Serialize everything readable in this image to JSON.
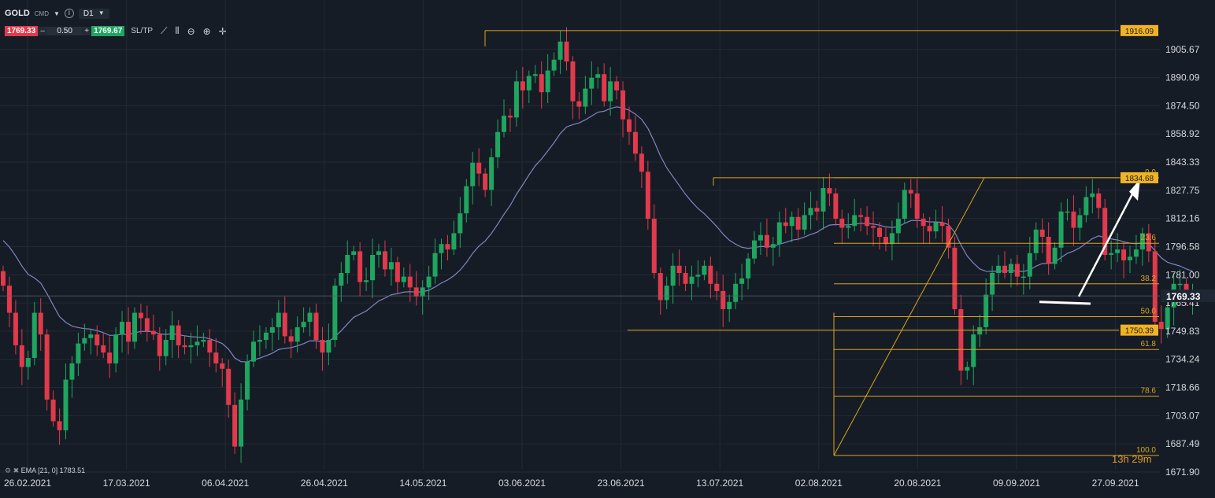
{
  "toolbar": {
    "symbol": "GOLD",
    "chart_type": "CMD",
    "timeframe": "D1",
    "bid": "1769.33",
    "minus": "–",
    "lot": "0.50",
    "plus": "+",
    "ask": "1769.67",
    "sltp": "SL/TP",
    "icons": [
      "line-chart-icon",
      "candles-icon",
      "zoom-out-icon",
      "zoom-in-icon",
      "crosshair-icon"
    ]
  },
  "ema_legend": "EMA [21, 0]  1783.51",
  "countdown": "13h 29m",
  "colors": {
    "background": "#161c25",
    "bull": "#1fa560",
    "bear": "#e03a4c",
    "ema": "#7f86c4",
    "fib": "#d9a421",
    "fib_label_bg": "#f0b323",
    "current_price_tag": "#1e2733"
  },
  "chart_data": {
    "type": "candlestick",
    "symbol": "GOLD",
    "timeframe": "D1",
    "y_ticks": [
      1905.67,
      1890.09,
      1874.5,
      1858.92,
      1843.33,
      1827.75,
      1812.16,
      1796.58,
      1781.0,
      1765.41,
      1749.83,
      1734.24,
      1718.66,
      1703.07,
      1687.49,
      1671.9
    ],
    "ylim": [
      1671.9,
      1921.25
    ],
    "x_ticks": [
      "26.02.2021",
      "17.03.2021",
      "06.04.2021",
      "26.04.2021",
      "14.05.2021",
      "03.06.2021",
      "23.06.2021",
      "13.07.2021",
      "02.08.2021",
      "20.08.2021",
      "09.09.2021",
      "27.09.2021"
    ],
    "closes": [
      1775,
      1760,
      1742,
      1730,
      1735,
      1760,
      1748,
      1712,
      1700,
      1695,
      1723,
      1732,
      1743,
      1746,
      1748,
      1742,
      1738,
      1732,
      1748,
      1755,
      1744,
      1760,
      1757,
      1750,
      1748,
      1736,
      1745,
      1753,
      1742,
      1741,
      1742,
      1744,
      1745,
      1738,
      1732,
      1729,
      1709,
      1686,
      1712,
      1733,
      1744,
      1745,
      1749,
      1752,
      1760,
      1747,
      1744,
      1752,
      1755,
      1760,
      1745,
      1738,
      1745,
      1775,
      1782,
      1792,
      1794,
      1777,
      1778,
      1792,
      1794,
      1784,
      1788,
      1777,
      1780,
      1774,
      1769,
      1774,
      1780,
      1793,
      1798,
      1795,
      1804,
      1815,
      1830,
      1843,
      1837,
      1828,
      1846,
      1860,
      1869,
      1868,
      1888,
      1883,
      1891,
      1892,
      1882,
      1894,
      1900,
      1910,
      1899,
      1877,
      1874,
      1884,
      1890,
      1892,
      1877,
      1888,
      1883,
      1867,
      1860,
      1848,
      1838,
      1812,
      1782,
      1767,
      1775,
      1786,
      1782,
      1776,
      1780,
      1781,
      1786,
      1776,
      1772,
      1762,
      1766,
      1776,
      1779,
      1790,
      1800,
      1803,
      1796,
      1798,
      1810,
      1808,
      1813,
      1806,
      1814,
      1818,
      1816,
      1829,
      1826,
      1812,
      1807,
      1808,
      1814,
      1813,
      1808,
      1807,
      1802,
      1798,
      1804,
      1812,
      1828,
      1826,
      1812,
      1808,
      1805,
      1810,
      1808,
      1796,
      1762,
      1728,
      1730,
      1748,
      1752,
      1770,
      1782,
      1786,
      1782,
      1787,
      1780,
      1780,
      1793,
      1806,
      1802,
      1787,
      1796,
      1816,
      1816,
      1807,
      1814,
      1824,
      1826,
      1818,
      1792,
      1793,
      1795,
      1789,
      1791,
      1795,
      1804,
      1794,
      1755,
      1751,
      1763,
      1776,
      1776,
      1768,
      1771
    ]
  },
  "fibonacci": {
    "levels": [
      {
        "ratio": "0.0",
        "price": 1834.68
      },
      {
        "ratio": "23.6",
        "price": 1798.43
      },
      {
        "ratio": "38.2",
        "price": 1776.01
      },
      {
        "ratio": "50.0",
        "price": 1757.85
      },
      {
        "ratio": "61.8",
        "price": 1739.7
      },
      {
        "ratio": "78.6",
        "price": 1713.9
      },
      {
        "ratio": "100.0",
        "price": 1681.1
      }
    ]
  },
  "price_labels": [
    {
      "label": "1916.09",
      "price": 1916.09
    },
    {
      "label": "1834.68",
      "price": 1834.68
    },
    {
      "label": "1750.39",
      "price": 1750.39
    }
  ],
  "current_price": {
    "label": "1769.33",
    "price": 1769.33
  },
  "ema": {
    "period": 21,
    "last": 1783.51
  }
}
